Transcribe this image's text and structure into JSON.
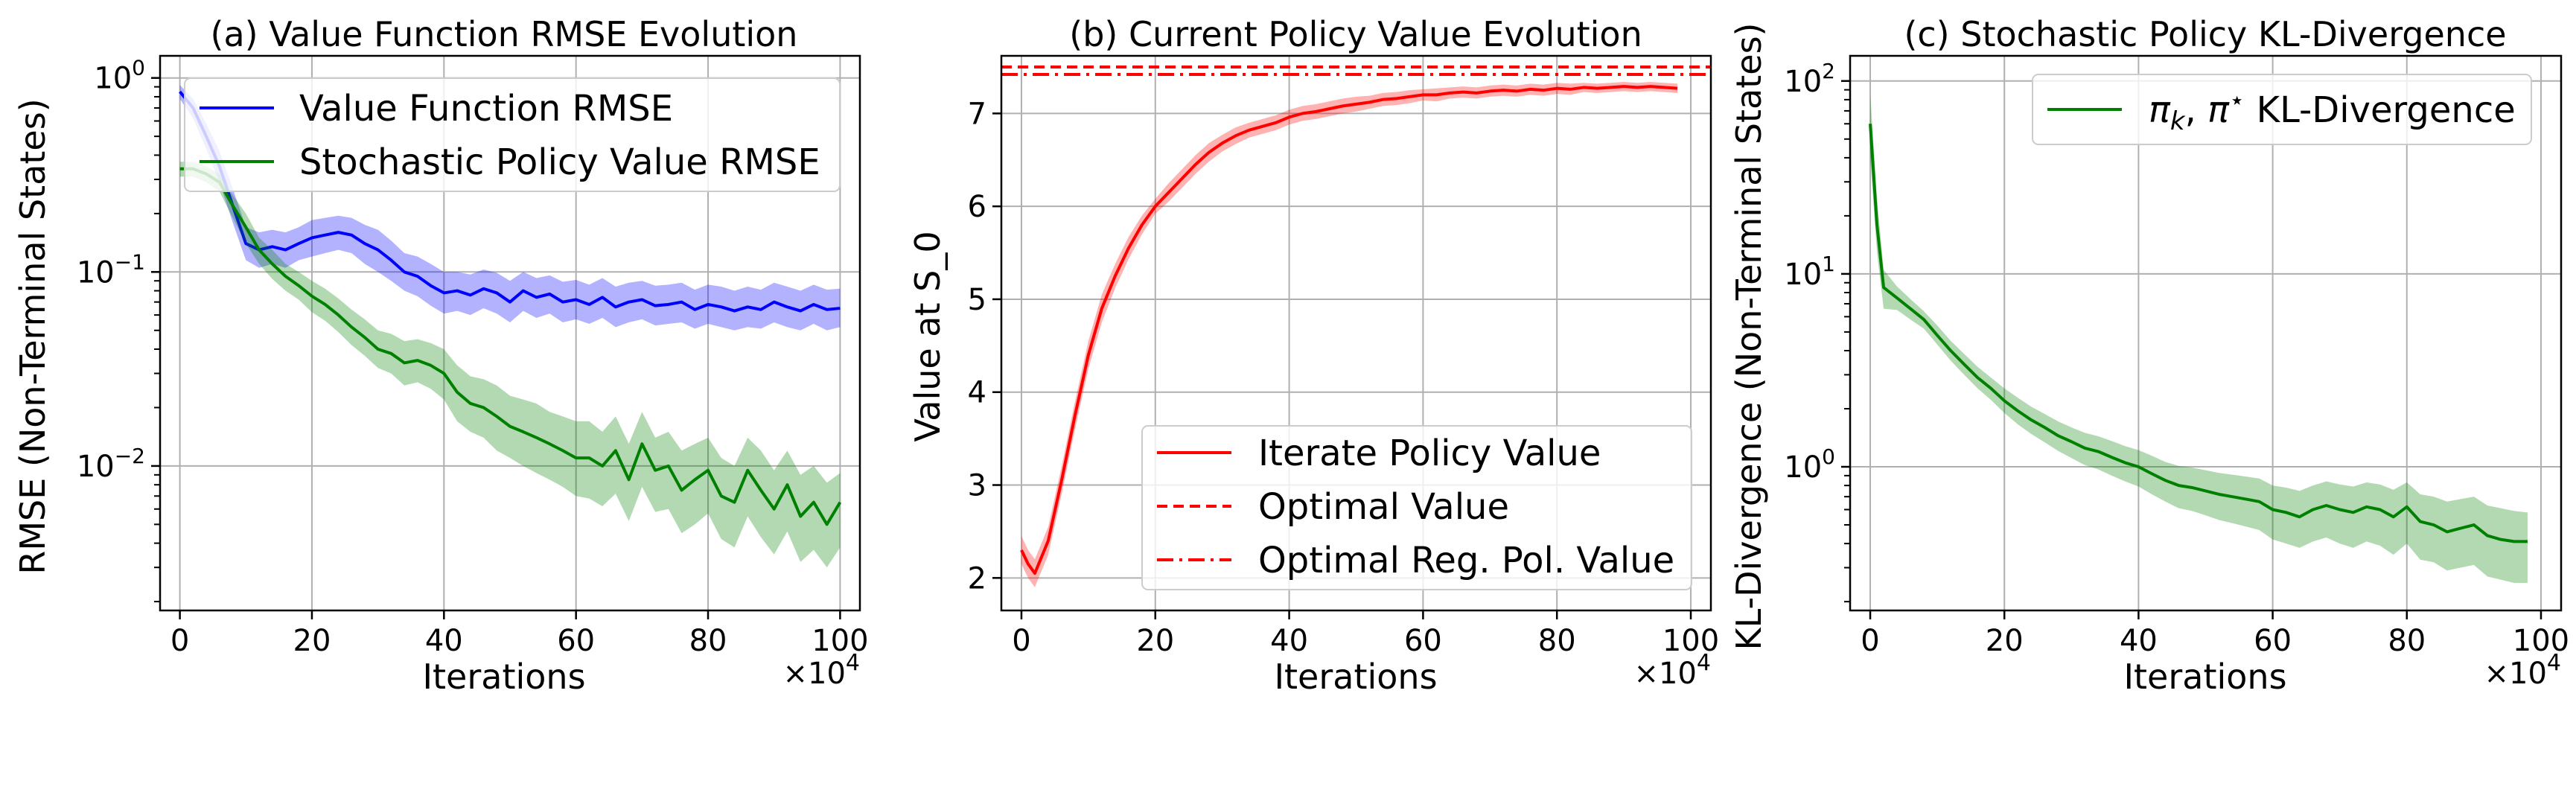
{
  "chart_data": [
    {
      "type": "line",
      "title": "(a) Value Function RMSE Evolution",
      "xlabel": "Iterations",
      "x_multiplier": "×10^4",
      "ylabel": "RMSE (Non-Terminal States)",
      "yscale": "log",
      "xlim": [
        -3,
        103
      ],
      "ylim": [
        0.0018,
        1.3
      ],
      "xticks": [
        0,
        20,
        40,
        60,
        80,
        100
      ],
      "yticks": [
        {
          "value": 1,
          "base": "10",
          "exp": "0"
        },
        {
          "value": 0.1,
          "base": "10",
          "exp": "−1"
        },
        {
          "value": 0.01,
          "base": "10",
          "exp": "−2"
        }
      ],
      "grid": true,
      "legend_position": "top-right",
      "series": [
        {
          "name": "Value Function RMSE",
          "color": "#0000ff",
          "x": [
            0,
            2,
            4,
            6,
            8,
            10,
            12,
            14,
            16,
            18,
            20,
            22,
            24,
            26,
            28,
            30,
            32,
            34,
            36,
            38,
            40,
            42,
            44,
            46,
            48,
            50,
            52,
            54,
            56,
            58,
            60,
            62,
            64,
            66,
            68,
            70,
            72,
            74,
            76,
            78,
            80,
            82,
            84,
            86,
            88,
            90,
            92,
            94,
            96,
            98,
            100
          ],
          "values": [
            0.85,
            0.7,
            0.5,
            0.35,
            0.22,
            0.14,
            0.13,
            0.135,
            0.13,
            0.14,
            0.15,
            0.155,
            0.16,
            0.155,
            0.14,
            0.13,
            0.115,
            0.1,
            0.095,
            0.085,
            0.078,
            0.08,
            0.076,
            0.082,
            0.078,
            0.07,
            0.08,
            0.074,
            0.077,
            0.07,
            0.072,
            0.068,
            0.074,
            0.066,
            0.07,
            0.072,
            0.067,
            0.068,
            0.07,
            0.064,
            0.068,
            0.066,
            0.063,
            0.066,
            0.064,
            0.07,
            0.066,
            0.063,
            0.068,
            0.064,
            0.065
          ],
          "upper": [
            0.92,
            0.78,
            0.58,
            0.42,
            0.27,
            0.17,
            0.16,
            0.165,
            0.16,
            0.17,
            0.185,
            0.19,
            0.195,
            0.19,
            0.175,
            0.165,
            0.145,
            0.125,
            0.12,
            0.11,
            0.1,
            0.1,
            0.097,
            0.103,
            0.099,
            0.09,
            0.1,
            0.093,
            0.096,
            0.089,
            0.091,
            0.086,
            0.093,
            0.084,
            0.088,
            0.09,
            0.085,
            0.086,
            0.088,
            0.081,
            0.086,
            0.084,
            0.08,
            0.084,
            0.081,
            0.088,
            0.084,
            0.08,
            0.086,
            0.081,
            0.082
          ],
          "lower": [
            0.78,
            0.62,
            0.43,
            0.29,
            0.18,
            0.115,
            0.105,
            0.11,
            0.105,
            0.115,
            0.12,
            0.125,
            0.13,
            0.125,
            0.11,
            0.1,
            0.09,
            0.08,
            0.075,
            0.067,
            0.061,
            0.063,
            0.06,
            0.065,
            0.061,
            0.055,
            0.063,
            0.058,
            0.061,
            0.055,
            0.057,
            0.054,
            0.058,
            0.052,
            0.055,
            0.057,
            0.053,
            0.054,
            0.055,
            0.051,
            0.054,
            0.052,
            0.05,
            0.052,
            0.051,
            0.055,
            0.052,
            0.05,
            0.054,
            0.05,
            0.052
          ]
        },
        {
          "name": "Stochastic Policy Value RMSE",
          "color": "#008000",
          "x": [
            0,
            2,
            4,
            6,
            8,
            10,
            12,
            14,
            16,
            18,
            20,
            22,
            24,
            26,
            28,
            30,
            32,
            34,
            36,
            38,
            40,
            42,
            44,
            46,
            48,
            50,
            52,
            54,
            56,
            58,
            60,
            62,
            64,
            66,
            68,
            70,
            72,
            74,
            76,
            78,
            80,
            82,
            84,
            86,
            88,
            90,
            92,
            94,
            96,
            98,
            100
          ],
          "values": [
            0.34,
            0.34,
            0.32,
            0.29,
            0.22,
            0.17,
            0.13,
            0.11,
            0.095,
            0.085,
            0.075,
            0.068,
            0.06,
            0.052,
            0.046,
            0.04,
            0.038,
            0.034,
            0.035,
            0.033,
            0.03,
            0.024,
            0.021,
            0.02,
            0.018,
            0.016,
            0.015,
            0.014,
            0.013,
            0.012,
            0.011,
            0.011,
            0.01,
            0.012,
            0.0085,
            0.013,
            0.0095,
            0.01,
            0.0075,
            0.0085,
            0.0095,
            0.007,
            0.0065,
            0.0095,
            0.0075,
            0.006,
            0.008,
            0.0055,
            0.0065,
            0.005,
            0.0065
          ],
          "upper": [
            0.37,
            0.37,
            0.35,
            0.32,
            0.25,
            0.2,
            0.15,
            0.13,
            0.11,
            0.1,
            0.09,
            0.082,
            0.073,
            0.064,
            0.057,
            0.05,
            0.048,
            0.044,
            0.045,
            0.043,
            0.04,
            0.033,
            0.029,
            0.028,
            0.026,
            0.023,
            0.022,
            0.021,
            0.019,
            0.018,
            0.017,
            0.017,
            0.015,
            0.018,
            0.013,
            0.019,
            0.014,
            0.015,
            0.012,
            0.013,
            0.014,
            0.011,
            0.01,
            0.014,
            0.012,
            0.0095,
            0.012,
            0.009,
            0.01,
            0.0082,
            0.0092
          ],
          "lower": [
            0.31,
            0.31,
            0.29,
            0.26,
            0.19,
            0.14,
            0.11,
            0.092,
            0.08,
            0.072,
            0.062,
            0.056,
            0.049,
            0.042,
            0.037,
            0.032,
            0.03,
            0.026,
            0.027,
            0.025,
            0.022,
            0.017,
            0.015,
            0.014,
            0.012,
            0.011,
            0.01,
            0.0092,
            0.0085,
            0.0078,
            0.007,
            0.0068,
            0.0062,
            0.0072,
            0.0052,
            0.0078,
            0.0058,
            0.006,
            0.0045,
            0.005,
            0.0057,
            0.0042,
            0.0038,
            0.0055,
            0.0043,
            0.0035,
            0.0046,
            0.0032,
            0.0037,
            0.003,
            0.0038
          ]
        }
      ]
    },
    {
      "type": "line",
      "title": "(b) Current Policy Value Evolution",
      "xlabel": "Iterations",
      "x_multiplier": "×10^4",
      "ylabel": "Value at S_0",
      "yscale": "linear",
      "xlim": [
        -3,
        103
      ],
      "ylim": [
        1.65,
        7.62
      ],
      "xticks": [
        0,
        20,
        40,
        60,
        80,
        100
      ],
      "yticks": [
        2,
        3,
        4,
        5,
        6,
        7
      ],
      "grid": true,
      "legend_position": "lower-right",
      "series": [
        {
          "name": "Iterate Policy Value",
          "color": "#ff0000",
          "x": [
            0,
            1,
            2,
            4,
            6,
            8,
            10,
            12,
            14,
            16,
            18,
            20,
            22,
            24,
            26,
            28,
            30,
            32,
            34,
            36,
            38,
            40,
            42,
            44,
            46,
            48,
            50,
            52,
            54,
            56,
            58,
            60,
            62,
            64,
            66,
            68,
            70,
            72,
            74,
            76,
            78,
            80,
            82,
            84,
            86,
            88,
            90,
            92,
            94,
            96,
            98
          ],
          "values": [
            2.3,
            2.15,
            2.05,
            2.4,
            3.05,
            3.75,
            4.4,
            4.9,
            5.25,
            5.55,
            5.8,
            6.0,
            6.15,
            6.3,
            6.45,
            6.58,
            6.68,
            6.76,
            6.82,
            6.86,
            6.9,
            6.96,
            7.0,
            7.02,
            7.05,
            7.08,
            7.1,
            7.12,
            7.15,
            7.16,
            7.18,
            7.2,
            7.2,
            7.22,
            7.23,
            7.22,
            7.24,
            7.25,
            7.24,
            7.26,
            7.25,
            7.27,
            7.26,
            7.28,
            7.27,
            7.28,
            7.29,
            7.28,
            7.29,
            7.28,
            7.27
          ],
          "upper": [
            2.45,
            2.3,
            2.2,
            2.55,
            3.2,
            3.9,
            4.55,
            5.05,
            5.38,
            5.67,
            5.9,
            6.08,
            6.25,
            6.4,
            6.55,
            6.68,
            6.77,
            6.85,
            6.9,
            6.94,
            6.98,
            7.04,
            7.08,
            7.1,
            7.13,
            7.16,
            7.18,
            7.19,
            7.22,
            7.23,
            7.25,
            7.26,
            7.27,
            7.28,
            7.29,
            7.28,
            7.3,
            7.31,
            7.3,
            7.32,
            7.31,
            7.33,
            7.32,
            7.33,
            7.32,
            7.33,
            7.34,
            7.33,
            7.34,
            7.33,
            7.32
          ],
          "lower": [
            2.15,
            2.0,
            1.9,
            2.25,
            2.9,
            3.6,
            4.25,
            4.75,
            5.12,
            5.43,
            5.7,
            5.92,
            6.05,
            6.2,
            6.35,
            6.48,
            6.59,
            6.67,
            6.74,
            6.78,
            6.82,
            6.88,
            6.92,
            6.94,
            6.97,
            7.0,
            7.02,
            7.05,
            7.08,
            7.09,
            7.11,
            7.14,
            7.13,
            7.16,
            7.17,
            7.16,
            7.18,
            7.19,
            7.18,
            7.2,
            7.19,
            7.21,
            7.2,
            7.23,
            7.22,
            7.23,
            7.24,
            7.23,
            7.24,
            7.23,
            7.22
          ]
        }
      ],
      "reference_lines": [
        {
          "name": "Optimal Value",
          "y": 7.5,
          "style": "dashed",
          "color": "#ff0000"
        },
        {
          "name": "Optimal Reg. Pol. Value",
          "y": 7.42,
          "style": "dashdot",
          "color": "#ff0000"
        }
      ]
    },
    {
      "type": "line",
      "title": "(c) Stochastic Policy KL-Divergence",
      "xlabel": "Iterations",
      "x_multiplier": "×10^4",
      "ylabel": "KL-Divergence (Non-Terminal States)",
      "yscale": "log",
      "xlim": [
        -3,
        103
      ],
      "ylim": [
        0.18,
        135
      ],
      "xticks": [
        0,
        20,
        40,
        60,
        80,
        100
      ],
      "yticks": [
        {
          "value": 100,
          "base": "10",
          "exp": "2"
        },
        {
          "value": 10,
          "base": "10",
          "exp": "1"
        },
        {
          "value": 1,
          "base": "10",
          "exp": "0"
        }
      ],
      "grid": true,
      "legend_position": "top-right",
      "series": [
        {
          "name": "π_k, π* KL-Divergence",
          "color": "#008000",
          "x": [
            0,
            1,
            2,
            4,
            6,
            8,
            10,
            12,
            14,
            16,
            18,
            20,
            22,
            24,
            26,
            28,
            30,
            32,
            34,
            36,
            38,
            40,
            42,
            44,
            46,
            48,
            50,
            52,
            54,
            56,
            58,
            60,
            62,
            64,
            66,
            68,
            70,
            72,
            74,
            76,
            78,
            80,
            82,
            84,
            86,
            88,
            90,
            92,
            94,
            96,
            98
          ],
          "values": [
            60,
            18,
            8.5,
            7.5,
            6.6,
            5.8,
            4.8,
            4.0,
            3.4,
            2.9,
            2.55,
            2.2,
            1.95,
            1.75,
            1.6,
            1.45,
            1.35,
            1.25,
            1.2,
            1.12,
            1.05,
            1.0,
            0.92,
            0.85,
            0.8,
            0.78,
            0.75,
            0.72,
            0.7,
            0.68,
            0.66,
            0.6,
            0.58,
            0.55,
            0.6,
            0.63,
            0.6,
            0.58,
            0.62,
            0.6,
            0.55,
            0.62,
            0.52,
            0.5,
            0.46,
            0.48,
            0.5,
            0.44,
            0.42,
            0.41,
            0.41
          ],
          "upper": [
            85,
            25,
            10.5,
            8.6,
            7.4,
            6.4,
            5.4,
            4.5,
            3.85,
            3.3,
            2.9,
            2.55,
            2.28,
            2.05,
            1.88,
            1.72,
            1.6,
            1.5,
            1.44,
            1.36,
            1.28,
            1.22,
            1.14,
            1.06,
            1.01,
            0.99,
            0.96,
            0.93,
            0.91,
            0.89,
            0.87,
            0.8,
            0.78,
            0.75,
            0.8,
            0.84,
            0.81,
            0.79,
            0.83,
            0.81,
            0.76,
            0.83,
            0.72,
            0.7,
            0.66,
            0.68,
            0.7,
            0.63,
            0.61,
            0.59,
            0.58
          ],
          "lower": [
            40,
            13,
            6.6,
            6.5,
            5.8,
            5.2,
            4.3,
            3.55,
            3.0,
            2.55,
            2.22,
            1.9,
            1.66,
            1.48,
            1.34,
            1.21,
            1.11,
            1.02,
            0.97,
            0.9,
            0.84,
            0.79,
            0.72,
            0.66,
            0.61,
            0.59,
            0.56,
            0.53,
            0.51,
            0.49,
            0.47,
            0.42,
            0.4,
            0.38,
            0.41,
            0.43,
            0.4,
            0.38,
            0.41,
            0.39,
            0.35,
            0.4,
            0.33,
            0.32,
            0.29,
            0.3,
            0.31,
            0.27,
            0.26,
            0.25,
            0.25
          ]
        }
      ]
    }
  ]
}
